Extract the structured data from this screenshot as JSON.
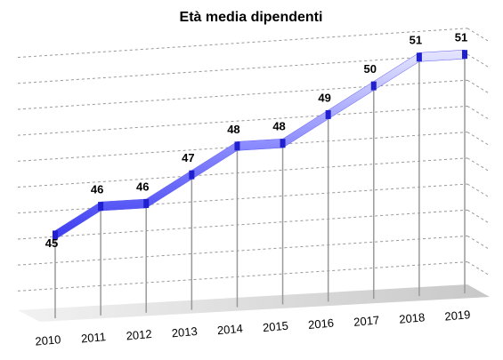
{
  "chart_data": {
    "type": "line",
    "title": "Età media dipendenti",
    "categories": [
      "2010",
      "2011",
      "2012",
      "2013",
      "2014",
      "2015",
      "2016",
      "2017",
      "2018",
      "2019"
    ],
    "values": [
      45,
      46,
      46,
      47,
      48,
      48,
      49,
      50,
      51,
      51
    ],
    "color": "#5a5af0",
    "ylim": [
      42,
      52
    ],
    "grid": true
  }
}
